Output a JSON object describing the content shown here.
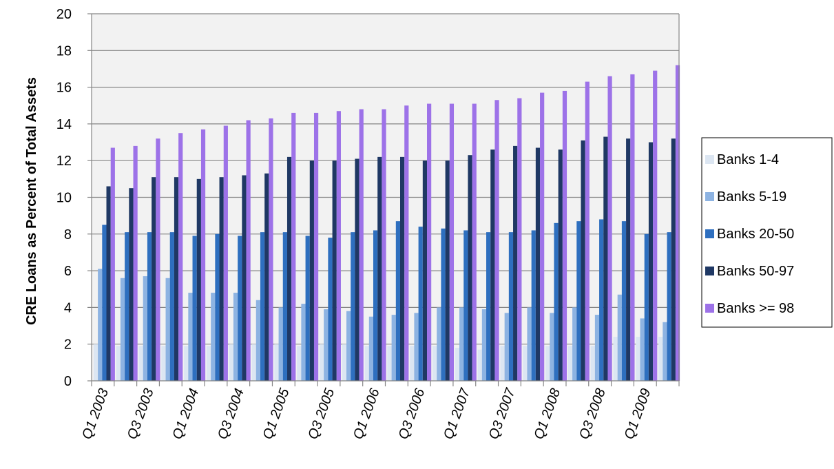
{
  "chart_data": {
    "type": "bar",
    "title": "",
    "xlabel": "",
    "ylabel": "CRE Loans as Percent of Total Assets",
    "ylim": [
      0,
      20
    ],
    "yticks": [
      0,
      2,
      4,
      6,
      8,
      10,
      12,
      14,
      16,
      18,
      20
    ],
    "grid": true,
    "legend_position": "right",
    "x_tick_labels": [
      "Q1 2003",
      "Q3 2003",
      "Q1 2004",
      "Q3 2004",
      "Q1 2005",
      "Q3 2005",
      "Q1 2006",
      "Q3 2006",
      "Q1 2007",
      "Q3 2007",
      "Q1 2008",
      "Q3 2008",
      "Q1 2009"
    ],
    "categories": [
      "Q1 2003",
      "Q2 2003",
      "Q3 2003",
      "Q4 2003",
      "Q1 2004",
      "Q2 2004",
      "Q3 2004",
      "Q4 2004",
      "Q1 2005",
      "Q2 2005",
      "Q3 2005",
      "Q4 2005",
      "Q1 2006",
      "Q2 2006",
      "Q3 2006",
      "Q4 2006",
      "Q1 2007",
      "Q2 2007",
      "Q3 2007",
      "Q4 2007",
      "Q1 2008",
      "Q2 2008",
      "Q3 2008",
      "Q4 2008",
      "Q1 2009",
      "Q2 2009"
    ],
    "series": [
      {
        "name": "Banks 1-4",
        "color": "#dce6f2",
        "values": [
          2.0,
          1.9,
          1.9,
          1.9,
          1.9,
          1.9,
          2.0,
          2.0,
          2.0,
          1.9,
          2.0,
          2.0,
          1.9,
          1.9,
          1.9,
          1.9,
          1.8,
          1.7,
          1.9,
          1.9,
          1.9,
          1.9,
          1.9,
          2.4,
          2.4,
          2.4
        ]
      },
      {
        "name": "Banks 5-19",
        "color": "#8db3e2",
        "values": [
          6.1,
          5.6,
          5.7,
          5.6,
          4.8,
          4.8,
          4.8,
          4.4,
          4.0,
          4.2,
          3.9,
          3.8,
          3.5,
          3.6,
          3.7,
          4.0,
          4.0,
          3.9,
          3.7,
          4.0,
          3.7,
          4.0,
          3.6,
          4.7,
          3.4,
          3.2
        ]
      },
      {
        "name": "Banks 20-50",
        "color": "#2e6fbf",
        "values": [
          8.5,
          8.1,
          8.1,
          8.1,
          7.9,
          8.0,
          7.9,
          8.1,
          8.1,
          7.9,
          7.8,
          8.1,
          8.2,
          8.7,
          8.4,
          8.3,
          8.2,
          8.1,
          8.1,
          8.2,
          8.6,
          8.7,
          8.8,
          8.7,
          8.0,
          8.1
        ]
      },
      {
        "name": "Banks 50-97",
        "color": "#1f3864",
        "values": [
          10.6,
          10.5,
          11.1,
          11.1,
          11.0,
          11.1,
          11.2,
          11.3,
          12.2,
          12.0,
          12.0,
          12.1,
          12.2,
          12.2,
          12.0,
          12.0,
          12.3,
          12.6,
          12.8,
          12.7,
          12.6,
          13.1,
          13.3,
          13.2,
          13.0,
          13.2
        ]
      },
      {
        "name": "Banks >= 98",
        "color": "#9d72e8",
        "values": [
          12.7,
          12.8,
          13.2,
          13.5,
          13.7,
          13.9,
          14.2,
          14.3,
          14.6,
          14.6,
          14.7,
          14.8,
          14.8,
          15.0,
          15.1,
          15.1,
          15.1,
          15.3,
          15.4,
          15.7,
          15.8,
          16.3,
          16.6,
          16.7,
          16.9,
          17.2
        ]
      }
    ]
  }
}
